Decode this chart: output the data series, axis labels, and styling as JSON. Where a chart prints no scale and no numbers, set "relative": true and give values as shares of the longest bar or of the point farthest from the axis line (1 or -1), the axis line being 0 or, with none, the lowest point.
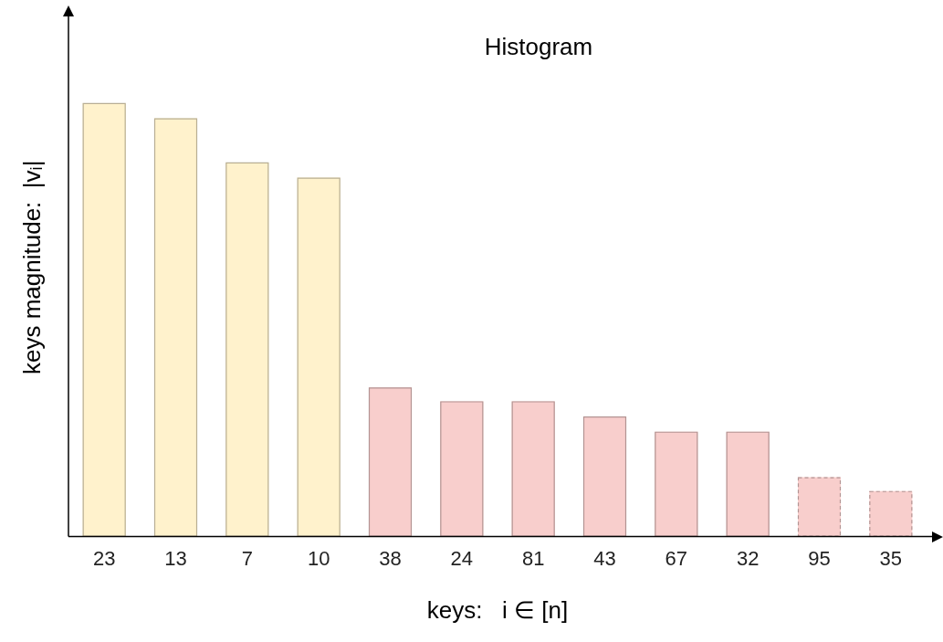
{
  "chart_data": {
    "type": "bar",
    "title": "Histogram",
    "xlabel": "keys:   i ∈ [n]",
    "ylabel": "keys magnitude:  |vᵢ|",
    "categories": [
      "23",
      "13",
      "7",
      "10",
      "38",
      "24",
      "81",
      "43",
      "67",
      "32",
      "95",
      "35"
    ],
    "relative": true,
    "stacked": true,
    "grid": false,
    "legend": false,
    "series": [
      {
        "color": "#fff2cc",
        "values": [
          1,
          0.965,
          0.863,
          0.828,
          null,
          null,
          null,
          null,
          null,
          null,
          null,
          null
        ]
      },
      {
        "color": "#f8cecc",
        "values": [
          null,
          null,
          null,
          null,
          0.344,
          0.312,
          0.312,
          0.277,
          0.242,
          0.242,
          null,
          null
        ]
      },
      {
        "color": "#f8cecc",
        "line_style": "dashed",
        "values": [
          null,
          null,
          null,
          null,
          null,
          null,
          null,
          null,
          null,
          null,
          0.137,
          0.105
        ]
      }
    ]
  }
}
